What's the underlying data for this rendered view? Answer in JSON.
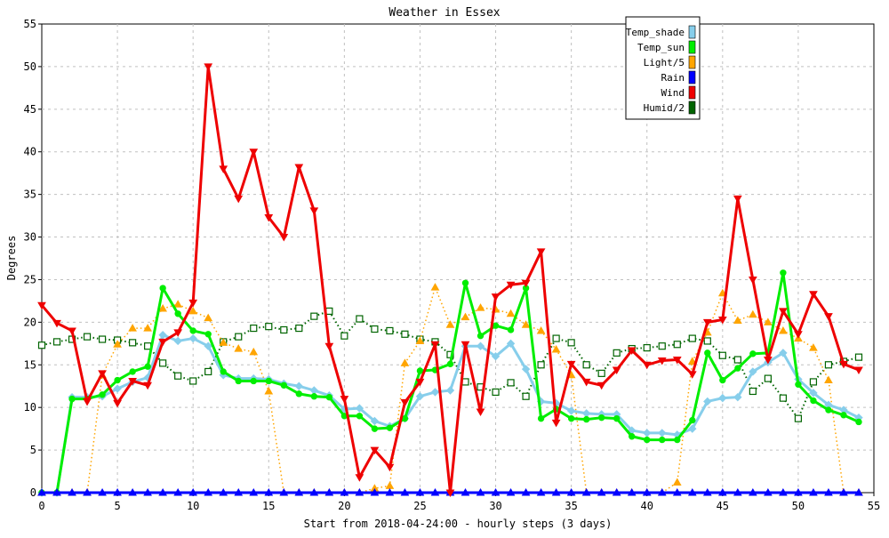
{
  "chart_data": {
    "type": "line",
    "title": "Weather in Essex",
    "xlabel": "Start from 2018-04-24:00 - hourly steps (3 days)",
    "ylabel": "Degrees",
    "xlim": [
      0,
      55
    ],
    "ylim": [
      0,
      55
    ],
    "x_ticks": [
      0,
      5,
      10,
      15,
      20,
      25,
      30,
      35,
      40,
      45,
      50,
      55
    ],
    "y_ticks": [
      0,
      5,
      10,
      15,
      20,
      25,
      30,
      35,
      40,
      45,
      50,
      55
    ],
    "grid": true,
    "legend_position": "top-right",
    "x": [
      0,
      1,
      2,
      3,
      4,
      5,
      6,
      7,
      8,
      9,
      10,
      11,
      12,
      13,
      14,
      15,
      16,
      17,
      18,
      19,
      20,
      21,
      22,
      23,
      24,
      25,
      26,
      27,
      28,
      29,
      30,
      31,
      32,
      33,
      34,
      35,
      36,
      37,
      38,
      39,
      40,
      41,
      42,
      43,
      44,
      45,
      46,
      47,
      48,
      49,
      50,
      51,
      52,
      53,
      54
    ],
    "series": [
      {
        "name": "Temp_shade",
        "color": "#87ceeb",
        "marker": "diamond",
        "dash": "solid",
        "width": 3,
        "values": [
          0,
          0,
          11.2,
          11.2,
          11.3,
          12.2,
          13,
          13.5,
          18.5,
          17.8,
          18.1,
          17.2,
          13.8,
          13.4,
          13.4,
          13.3,
          12.8,
          12.5,
          12,
          11.4,
          9.8,
          9.9,
          8.4,
          7.8,
          8.7,
          11.3,
          11.8,
          12,
          17.2,
          17.2,
          16,
          17.5,
          14.5,
          10.7,
          10.5,
          9.6,
          9.3,
          9.2,
          9.2,
          7.3,
          7,
          7,
          6.8,
          7.5,
          10.7,
          11.1,
          11.2,
          14.2,
          15.3,
          16.4,
          13.3,
          11.7,
          10.3,
          9.7,
          8.8
        ]
      },
      {
        "name": "Temp_sun",
        "color": "#00ee00",
        "marker": "circle",
        "dash": "solid",
        "width": 3,
        "values": [
          0,
          0,
          11,
          11,
          11.5,
          13.2,
          14.2,
          14.8,
          24,
          21,
          19,
          18.6,
          14.2,
          13.1,
          13.1,
          13.1,
          12.6,
          11.6,
          11.3,
          11.2,
          9,
          9,
          7.5,
          7.6,
          8.7,
          14.3,
          14.4,
          15.1,
          24.6,
          18.4,
          19.6,
          19.1,
          24,
          8.7,
          9.8,
          8.7,
          8.6,
          8.8,
          8.7,
          6.6,
          6.2,
          6.2,
          6.2,
          8.5,
          16.4,
          13.2,
          14.6,
          16.3,
          16.4,
          25.8,
          12.7,
          10.8,
          9.7,
          9.1,
          8.3
        ]
      },
      {
        "name": "Light/5",
        "color": "#ffa500",
        "marker": "triangle-up",
        "dash": "dotted",
        "width": 1.5,
        "values": [
          0,
          0,
          0,
          0,
          13.8,
          17.4,
          19.3,
          19.3,
          21.6,
          22.1,
          21.3,
          20.5,
          17.6,
          16.9,
          16.5,
          11.9,
          0,
          0,
          0,
          0,
          0,
          0,
          0.5,
          0.8,
          15.2,
          17.8,
          24.1,
          19.7,
          20.6,
          21.7,
          21.5,
          21,
          19.7,
          19,
          16.8,
          13.8,
          0,
          0,
          0,
          0,
          0,
          0,
          1.2,
          15.4,
          18.8,
          23.4,
          20.2,
          20.9,
          20,
          19,
          18.1,
          17,
          13.2,
          0,
          0
        ]
      },
      {
        "name": "Rain",
        "color": "#0000ff",
        "marker": "triangle-up",
        "dash": "solid",
        "width": 3,
        "values": [
          0,
          0,
          0,
          0,
          0,
          0,
          0,
          0,
          0,
          0,
          0,
          0,
          0,
          0,
          0,
          0,
          0,
          0,
          0,
          0,
          0,
          0,
          0,
          0,
          0,
          0,
          0,
          0,
          0,
          0,
          0,
          0,
          0,
          0,
          0,
          0,
          0,
          0,
          0,
          0,
          0,
          0,
          0,
          0,
          0,
          0,
          0,
          0,
          0,
          0,
          0,
          0,
          0,
          0,
          0
        ]
      },
      {
        "name": "Wind",
        "color": "#ee0000",
        "marker": "triangle-down",
        "dash": "solid",
        "width": 3,
        "values": [
          22,
          19.9,
          19,
          10.7,
          14,
          10.5,
          13.1,
          12.6,
          17.7,
          18.8,
          22.3,
          50,
          38,
          34.5,
          40,
          32.3,
          30,
          38.2,
          33.1,
          17.2,
          11,
          1.8,
          5,
          3,
          10.6,
          13,
          17.4,
          0,
          17.4,
          9.5,
          23,
          24.4,
          24.6,
          28.3,
          8.2,
          15.1,
          13,
          12.6,
          14.4,
          16.7,
          15,
          15.5,
          15.6,
          13.9,
          20,
          20.3,
          34.5,
          25,
          15.6,
          21.3,
          18.6,
          23.3,
          20.7,
          15.1,
          14.4
        ]
      },
      {
        "name": "Humid/2",
        "color": "#006400",
        "marker": "square",
        "dash": "dotted",
        "width": 2,
        "values": [
          17.3,
          17.7,
          18,
          18.3,
          18,
          17.9,
          17.6,
          17.2,
          15.2,
          13.7,
          13.1,
          14.2,
          17.7,
          18.3,
          19.3,
          19.5,
          19.1,
          19.3,
          20.7,
          21.3,
          18.4,
          20.4,
          19.2,
          19,
          18.6,
          18,
          17.7,
          16.2,
          13,
          12.4,
          11.8,
          12.9,
          11.3,
          15,
          18.1,
          17.6,
          15,
          14,
          16.4,
          16.9,
          17,
          17.2,
          17.4,
          18.1,
          17.8,
          16.1,
          15.6,
          11.9,
          13.4,
          11.1,
          8.7,
          13,
          15,
          15.4,
          15.9
        ]
      }
    ]
  }
}
